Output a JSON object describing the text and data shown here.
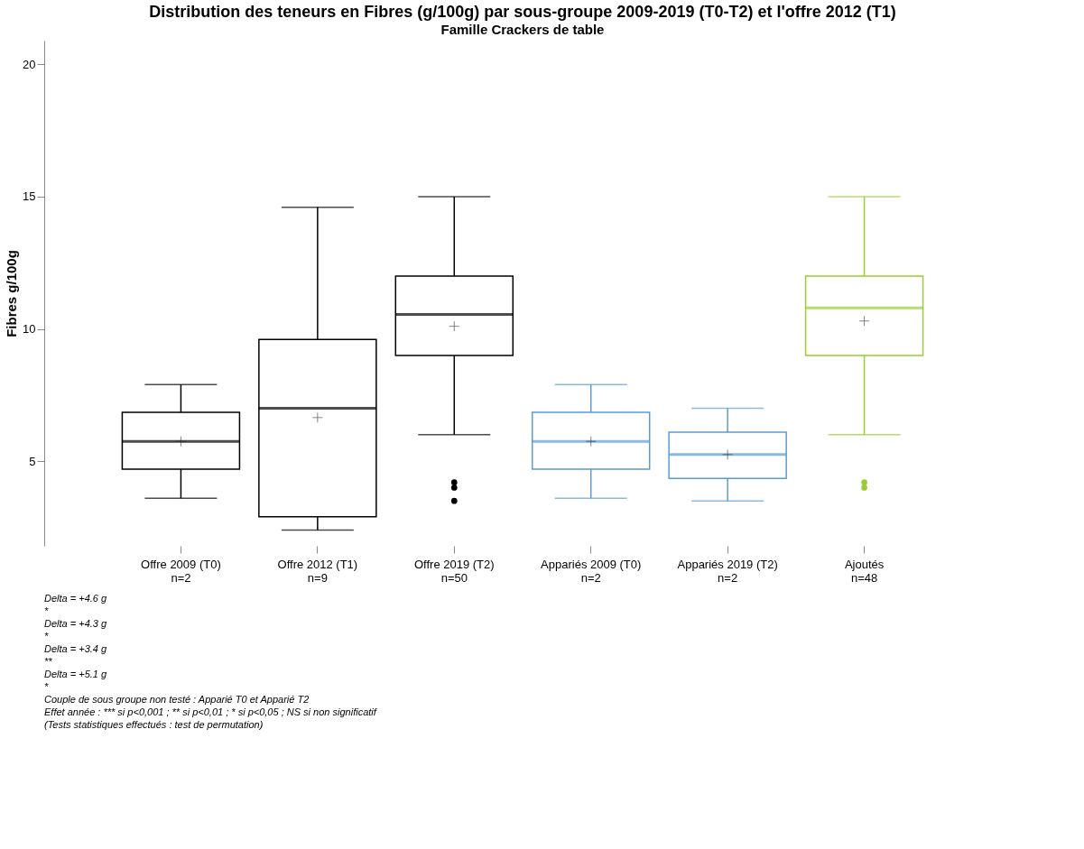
{
  "chart_data": {
    "type": "box",
    "title": "Distribution des teneurs en Fibres (g/100g) par sous-groupe 2009-2019 (T0-T2) et l'offre 2012 (T1)",
    "subtitle": "Famille Crackers de table",
    "ylabel": "Fibres g/100g",
    "categories": [
      "Offre 2009 (T0)\nn=2",
      "Offre 2012 (T1)\nn=9",
      "Offre 2019 (T2)\nn=50",
      "Appariés 2009 (T0)\nn=2",
      "Appariés 2019 (T2)\nn=2",
      "Ajoutés\nn=48"
    ],
    "colors": [
      "#000000",
      "#000000",
      "#000000",
      "#5b9bd5",
      "#5b9bd5",
      "#9acd32"
    ],
    "boxes": [
      {
        "low": 3.6,
        "q1": 4.7,
        "median": 5.75,
        "q3": 6.85,
        "high": 7.9,
        "mean": 5.75
      },
      {
        "low": 2.4,
        "q1": 2.9,
        "median": 7.0,
        "q3": 9.6,
        "high": 14.6,
        "mean": 6.65
      },
      {
        "low": 6.0,
        "q1": 9.0,
        "median": 10.55,
        "q3": 12.0,
        "high": 15.0,
        "mean": 10.1,
        "outliers": [
          4.2,
          4.0,
          3.5
        ]
      },
      {
        "low": 3.6,
        "q1": 4.7,
        "median": 5.75,
        "q3": 6.85,
        "high": 7.9,
        "mean": 5.75
      },
      {
        "low": 3.5,
        "q1": 4.35,
        "median": 5.25,
        "q3": 6.1,
        "high": 7.0,
        "mean": 5.25
      },
      {
        "low": 6.0,
        "q1": 9.0,
        "median": 10.8,
        "q3": 12.0,
        "high": 15.0,
        "mean": 10.3,
        "outliers": [
          4.2,
          4.0
        ]
      }
    ],
    "ylim": [
      1.8,
      20.9
    ],
    "yticks": [
      5,
      10,
      15,
      20
    ],
    "grid": false,
    "annotations": [
      "Delta = +4.6 g",
      "*",
      "Delta = +4.3 g",
      "*",
      "Delta = +3.4 g",
      "**",
      "Delta = +5.1 g",
      "*",
      "Couple de sous groupe non testé : Apparié T0 et Apparié T2",
      "Effet année : *** si p<0,001 ; ** si p<0,01 ; * si p<0,05 ; NS si non significatif",
      "(Tests statistiques effectués : test de permutation)"
    ]
  }
}
